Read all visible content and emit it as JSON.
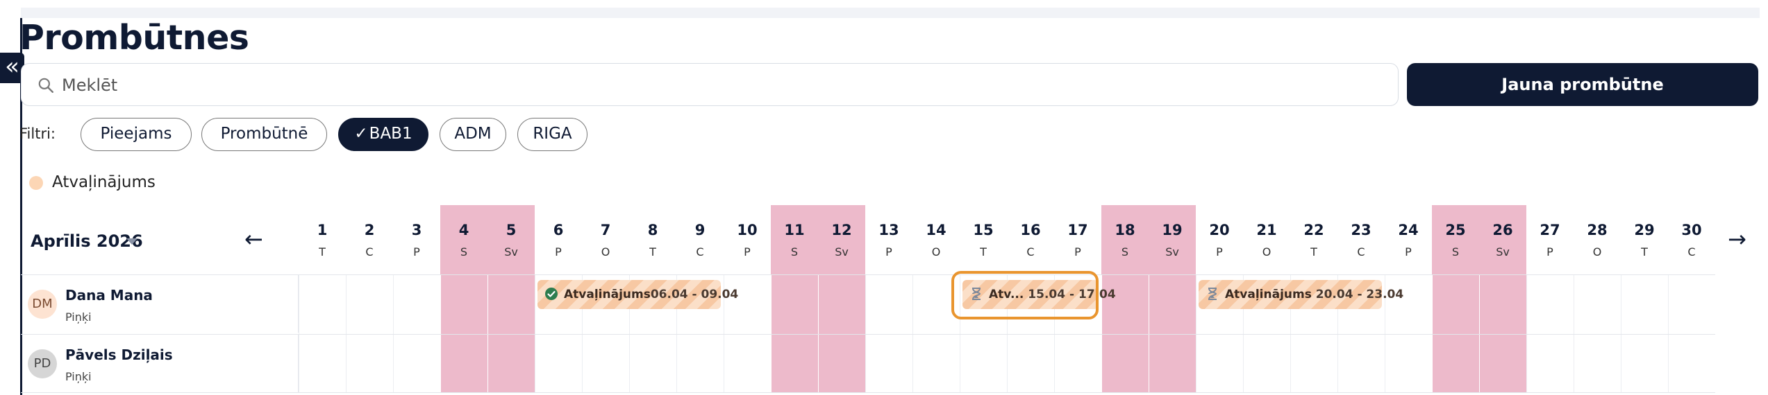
{
  "page": {
    "title": "Prombūtnes"
  },
  "sidebar": {
    "collapse_icon": "«"
  },
  "search": {
    "placeholder": "Meklēt"
  },
  "actions": {
    "new_absence_label": "Jauna prombūtne"
  },
  "filters": {
    "label": "Filtri:",
    "chips": [
      {
        "label": "Pieejams",
        "active": false
      },
      {
        "label": "Prombūtnē",
        "active": false
      },
      {
        "label": "BAB1",
        "active": true
      },
      {
        "label": "ADM",
        "active": false
      },
      {
        "label": "RIGA",
        "active": false
      }
    ]
  },
  "legend": {
    "items": [
      {
        "label": "Atvaļinājums",
        "color": "#fcd6b5"
      }
    ]
  },
  "calendar": {
    "month_label": "Aprīlis 2026",
    "prev_icon": "←",
    "next_icon": "→",
    "days": [
      {
        "num": "1",
        "abbr": "T",
        "weekend": false
      },
      {
        "num": "2",
        "abbr": "C",
        "weekend": false
      },
      {
        "num": "3",
        "abbr": "P",
        "weekend": false
      },
      {
        "num": "4",
        "abbr": "S",
        "weekend": true
      },
      {
        "num": "5",
        "abbr": "Sv",
        "weekend": true
      },
      {
        "num": "6",
        "abbr": "P",
        "weekend": false
      },
      {
        "num": "7",
        "abbr": "O",
        "weekend": false
      },
      {
        "num": "8",
        "abbr": "T",
        "weekend": false
      },
      {
        "num": "9",
        "abbr": "C",
        "weekend": false
      },
      {
        "num": "10",
        "abbr": "P",
        "weekend": false
      },
      {
        "num": "11",
        "abbr": "S",
        "weekend": true
      },
      {
        "num": "12",
        "abbr": "Sv",
        "weekend": true
      },
      {
        "num": "13",
        "abbr": "P",
        "weekend": false
      },
      {
        "num": "14",
        "abbr": "O",
        "weekend": false
      },
      {
        "num": "15",
        "abbr": "T",
        "weekend": false
      },
      {
        "num": "16",
        "abbr": "C",
        "weekend": false
      },
      {
        "num": "17",
        "abbr": "P",
        "weekend": false
      },
      {
        "num": "18",
        "abbr": "S",
        "weekend": true
      },
      {
        "num": "19",
        "abbr": "Sv",
        "weekend": true
      },
      {
        "num": "20",
        "abbr": "P",
        "weekend": false
      },
      {
        "num": "21",
        "abbr": "O",
        "weekend": false
      },
      {
        "num": "22",
        "abbr": "T",
        "weekend": false
      },
      {
        "num": "23",
        "abbr": "C",
        "weekend": false
      },
      {
        "num": "24",
        "abbr": "P",
        "weekend": false
      },
      {
        "num": "25",
        "abbr": "S",
        "weekend": true
      },
      {
        "num": "26",
        "abbr": "Sv",
        "weekend": true
      },
      {
        "num": "27",
        "abbr": "P",
        "weekend": false
      },
      {
        "num": "28",
        "abbr": "O",
        "weekend": false
      },
      {
        "num": "29",
        "abbr": "T",
        "weekend": false
      },
      {
        "num": "30",
        "abbr": "C",
        "weekend": false
      }
    ]
  },
  "employees": [
    {
      "initials": "DM",
      "name": "Dana Mana",
      "group": "Piņķi",
      "avatar_bg": "#fde3d2",
      "avatar_fg": "#7a4a30",
      "absences": [
        {
          "label": "Atvaļinājums",
          "dates": "06.04 - 09.04",
          "status": "approved",
          "start": 6,
          "end": 9
        },
        {
          "label": "Atv...",
          "dates": "15.04 - 17.04",
          "status": "pending",
          "start": 15,
          "end": 17
        },
        {
          "label": "Atvaļinājums",
          "dates": "20.04 - 23.04",
          "status": "pending",
          "start": 20,
          "end": 23
        }
      ]
    },
    {
      "initials": "PD",
      "name": "Pāvels Dziļais",
      "group": "Piņķi",
      "avatar_bg": "#d6d6d6",
      "avatar_fg": "#444444",
      "absences": []
    }
  ],
  "colors": {
    "primary": "#0f1a33",
    "weekend": "#edbacb",
    "absence": "#f7c8a3",
    "highlight": "#e9952f",
    "approved": "#2e7d4f"
  }
}
